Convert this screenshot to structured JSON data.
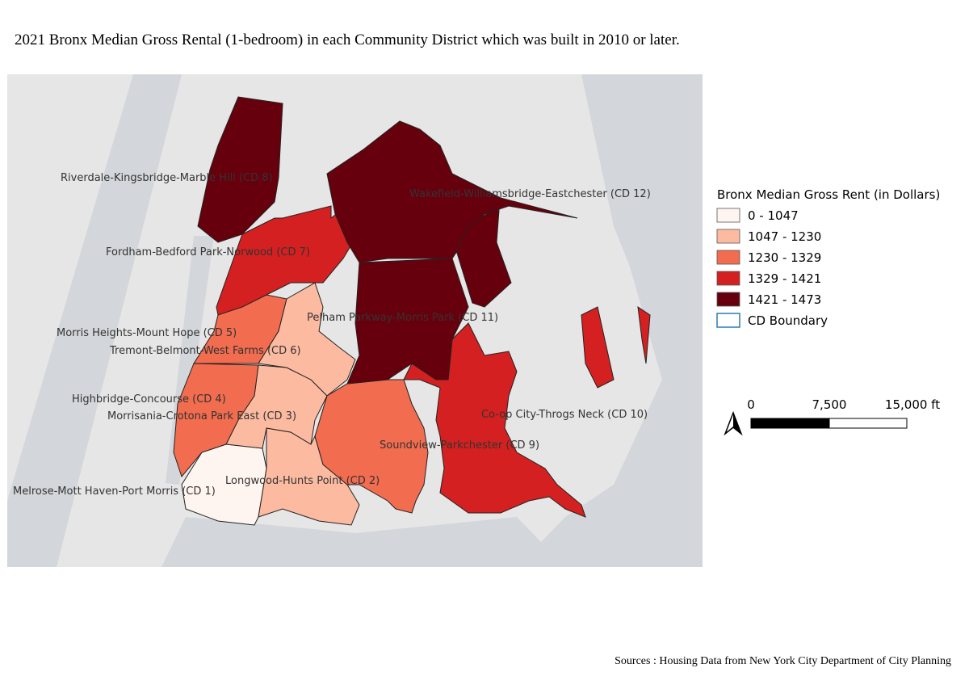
{
  "title": "2021 Bronx Median Gross Rental (1-bedroom) in each Community District which was built in 2010 or later.",
  "districts": [
    {
      "label": "Melrose-Mott Haven-Port Morris (CD 1)",
      "color": "#fff5f0"
    },
    {
      "label": "Longwood-Hunts Point (CD 2)",
      "color": "#fcbba1"
    },
    {
      "label": "Morrisania-Crotona Park East (CD 3)",
      "color": "#fcbba1"
    },
    {
      "label": "Highbridge-Concourse (CD 4)",
      "color": "#f26c4f"
    },
    {
      "label": "Morris Heights-Mount Hope (CD 5)",
      "color": "#f26c4f"
    },
    {
      "label": "Tremont-Belmont-West Farms (CD 6)",
      "color": "#fcbba1"
    },
    {
      "label": "Fordham-Bedford Park-Norwood (CD 7)",
      "color": "#d42020"
    },
    {
      "label": "Riverdale-Kingsbridge-Marble Hill (CD 8)",
      "color": "#67000d"
    },
    {
      "label": "Soundview-Parkchester (CD 9)",
      "color": "#f26c4f"
    },
    {
      "label": "Co-op City-Throgs Neck (CD 10)",
      "color": "#d42020"
    },
    {
      "label": "Pelham Parkway-Morris Park (CD 11)",
      "color": "#67000d"
    },
    {
      "label": "Wakefield-Williamsbridge-Eastchester (CD 12)",
      "color": "#67000d"
    }
  ],
  "legend": {
    "title": "Bronx Median Gross Rent (in Dollars)",
    "items": [
      {
        "label": "0 - 1047",
        "color": "#fff5f0"
      },
      {
        "label": "1047 - 1230",
        "color": "#fcbba1"
      },
      {
        "label": "1230 - 1329",
        "color": "#f26c4f"
      },
      {
        "label": "1329 - 1421",
        "color": "#d42020"
      },
      {
        "label": "1421 - 1473",
        "color": "#67000d"
      },
      {
        "label": "CD Boundary",
        "outline": "#2b7bba"
      }
    ]
  },
  "scale_bar": {
    "labels": [
      "0",
      "7,500",
      "15,000 ft"
    ]
  },
  "source": "Sources : Housing Data from New York City Department of City Planning"
}
